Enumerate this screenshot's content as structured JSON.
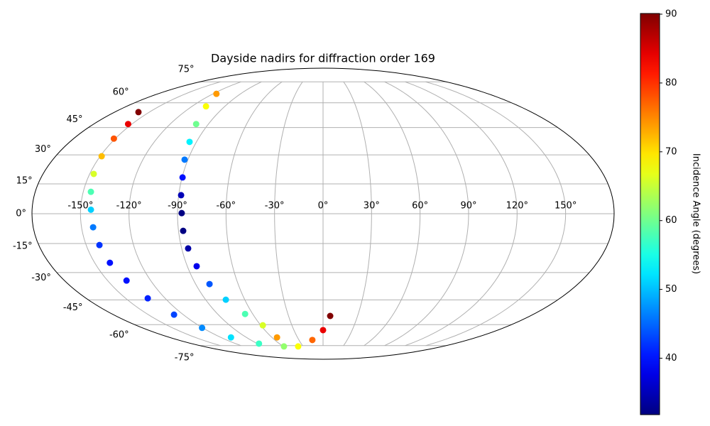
{
  "chart_data": {
    "type": "scatter",
    "projection": "mollweide",
    "title": "Dayside nadirs for diffraction order 169",
    "colormap": "jet",
    "grid": true,
    "xlim": [
      -180,
      180
    ],
    "ylim": [
      -90,
      90
    ],
    "xticks": [
      {
        "value": -150,
        "label": "-150°"
      },
      {
        "value": -120,
        "label": "-120°"
      },
      {
        "value": -90,
        "label": "-90°"
      },
      {
        "value": -60,
        "label": "-60°"
      },
      {
        "value": -30,
        "label": "-30°"
      },
      {
        "value": 0,
        "label": "0°"
      },
      {
        "value": 30,
        "label": "30°"
      },
      {
        "value": 60,
        "label": "60°"
      },
      {
        "value": 90,
        "label": "90°"
      },
      {
        "value": 120,
        "label": "120°"
      },
      {
        "value": 150,
        "label": "150°"
      }
    ],
    "yticks": [
      {
        "value": -75,
        "label": "-75°"
      },
      {
        "value": -60,
        "label": "-60°"
      },
      {
        "value": -45,
        "label": "-45°"
      },
      {
        "value": -30,
        "label": "-30°"
      },
      {
        "value": -15,
        "label": "-15°"
      },
      {
        "value": 0,
        "label": "0°"
      },
      {
        "value": 15,
        "label": "15°"
      },
      {
        "value": 30,
        "label": "30°"
      },
      {
        "value": 45,
        "label": "45°"
      },
      {
        "value": 60,
        "label": "60°"
      },
      {
        "value": 75,
        "label": "75°"
      }
    ],
    "series": [
      {
        "x": [
          -159.4,
          -153,
          -151,
          -149,
          -147.4,
          -145.2,
          -143.6,
          -142.8,
          -141.6,
          -140,
          -136.8,
          -133.2,
          -127.9,
          -120.6,
          -108,
          -87.8,
          -58.9,
          -37.5,
          -13.3,
          0,
          6.2
        ],
        "y": [
          54.1,
          47,
          38.8,
          29.3,
          20.1,
          11,
          2,
          -6.8,
          -15.8,
          -24.9,
          -34.3,
          -44.1,
          -53.7,
          -62.1,
          -68.7,
          -73.4,
          -75.7,
          -75.7,
          -70.6,
          -63.6,
          -54.5
        ],
        "values": [
          90,
          84,
          78,
          72,
          66,
          58,
          51,
          46,
          42,
          40,
          40,
          41,
          43,
          47,
          52,
          57,
          62,
          68,
          77,
          84,
          90
        ]
      },
      {
        "x": [
          -116.3,
          -107.2,
          -99.6,
          -94.9,
          -92.2,
          -89.7,
          -88.5,
          -87.4,
          -87.1,
          -85.9,
          -83.8,
          -80.2,
          -74.5,
          -66.5,
          -58,
          -54
        ],
        "y": [
          66,
          57.7,
          47,
          37,
          27.5,
          18.3,
          9.3,
          0.3,
          -8.6,
          -17.5,
          -26.7,
          -36.2,
          -44.9,
          -53.3,
          -60.4,
          -68.7
        ],
        "values": [
          74,
          68,
          60,
          53,
          46,
          40,
          35,
          32,
          32,
          34,
          38,
          44,
          51,
          58,
          66,
          74
        ]
      }
    ],
    "colorbar": {
      "label": "Incidence Angle (degrees)",
      "lim": [
        31.8,
        90.1
      ],
      "ticks": [
        40,
        50,
        60,
        70,
        80,
        90
      ]
    }
  }
}
